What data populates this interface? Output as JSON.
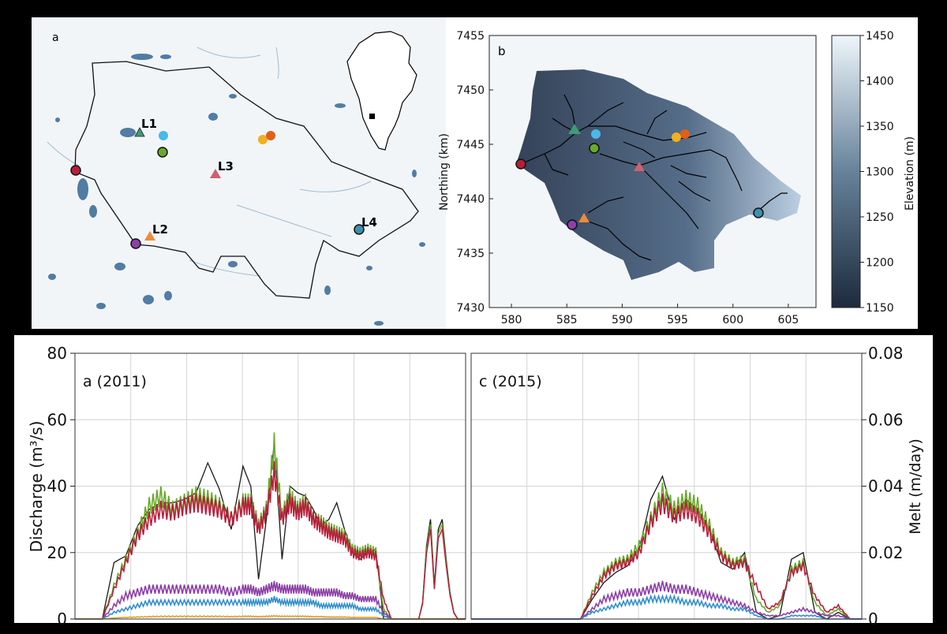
{
  "panel_a": {
    "label": "a",
    "lakes": [
      {
        "id": "L1",
        "label": "L1"
      },
      {
        "id": "L2",
        "label": "L2"
      },
      {
        "id": "L3",
        "label": "L3"
      },
      {
        "id": "L4",
        "label": "L4"
      }
    ]
  },
  "panel_b": {
    "label": "b",
    "xticks": [
      "580",
      "585",
      "590",
      "595",
      "600",
      "605"
    ],
    "yticks": [
      "7430",
      "7435",
      "7440",
      "7445",
      "7450",
      "7455"
    ],
    "ylabel": "Northing (km)",
    "colorbar": {
      "label": "Elevation (m)",
      "ticks": [
        "1150",
        "1200",
        "1250",
        "1300",
        "1350",
        "1400",
        "1450"
      ],
      "range": [
        1150,
        1450
      ],
      "colors": [
        "#1d2a3c",
        "#eef6fb"
      ]
    }
  },
  "chart_data": [
    {
      "type": "line",
      "panel": "a (2011)",
      "ylabel_left": "Discharge (m³/s)",
      "ylabel_right": "Melt (m/day)",
      "yticks_left": [
        "0",
        "20",
        "40",
        "60",
        "80"
      ],
      "yticks_right": [
        "0",
        "0.02",
        "0.04",
        "0.06",
        "0.08"
      ],
      "ylim": [
        0,
        80
      ],
      "ylim_right": [
        0,
        0.08
      ],
      "x_range": [
        0,
        100
      ],
      "grid": true,
      "series": [
        {
          "color": "#1a1a1a",
          "x": [
            0,
            4,
            7,
            10,
            13,
            16,
            19,
            22,
            25,
            28,
            31,
            34,
            37,
            40,
            43,
            45,
            47,
            49,
            51,
            53,
            55,
            57,
            59,
            61,
            63,
            65,
            67,
            69,
            71,
            73,
            75,
            77,
            79,
            81,
            83,
            85,
            87,
            89,
            91,
            93,
            95,
            97,
            99,
            100
          ],
          "y": [
            0,
            0,
            0,
            17,
            19,
            28,
            33,
            35,
            35,
            36,
            38,
            47,
            39,
            27,
            46,
            40,
            12,
            30,
            53,
            18,
            40,
            38,
            37,
            33,
            28,
            30,
            35,
            27,
            20,
            18,
            20,
            21,
            0,
            0,
            0,
            0,
            0,
            0,
            0,
            0,
            0,
            0,
            0,
            0
          ]
        },
        {
          "color": "#6aaa2a",
          "x": [
            0,
            4,
            7,
            10,
            13,
            16,
            19,
            22,
            25,
            28,
            31,
            34,
            37,
            40,
            43,
            45,
            47,
            49,
            51,
            53,
            55,
            57,
            59,
            61,
            63,
            65,
            67,
            69,
            71,
            73,
            75,
            77,
            79,
            81,
            83,
            85,
            87,
            89,
            91,
            93,
            95,
            97,
            99,
            100
          ],
          "y": [
            0,
            0,
            0,
            10,
            18,
            26,
            34,
            37,
            33,
            35,
            37,
            36,
            34,
            30,
            35,
            35,
            28,
            33,
            52,
            31,
            37,
            33,
            35,
            30,
            29,
            27,
            26,
            25,
            21,
            20,
            21,
            20,
            3,
            0,
            0,
            0,
            0,
            0,
            0,
            0,
            0,
            0,
            0,
            0
          ]
        },
        {
          "color": "#b81e3c",
          "x": [
            0,
            4,
            7,
            10,
            13,
            16,
            19,
            22,
            25,
            28,
            31,
            34,
            37,
            40,
            43,
            45,
            47,
            49,
            51,
            53,
            55,
            57,
            59,
            61,
            63,
            65,
            67,
            69,
            71,
            73,
            75,
            77,
            79,
            81,
            83,
            85,
            87,
            89,
            91,
            93,
            95,
            97,
            99,
            100
          ],
          "y": [
            0,
            0,
            0,
            9,
            17,
            25,
            30,
            33,
            32,
            34,
            35,
            34,
            33,
            30,
            34,
            34,
            27,
            32,
            44,
            30,
            35,
            32,
            34,
            30,
            28,
            26,
            25,
            24,
            20,
            19,
            20,
            19,
            6,
            0,
            0,
            0,
            0,
            0,
            0,
            0,
            0,
            0,
            0,
            0
          ]
        },
        {
          "color": "#8e3fa8",
          "x": [
            0,
            4,
            7,
            10,
            13,
            16,
            19,
            22,
            25,
            28,
            31,
            34,
            37,
            40,
            43,
            45,
            47,
            49,
            51,
            53,
            55,
            57,
            59,
            61,
            63,
            65,
            67,
            69,
            71,
            73,
            75,
            77,
            79,
            81,
            83,
            85,
            87,
            89,
            91,
            93,
            95,
            97,
            99,
            100
          ],
          "y": [
            0,
            0,
            0,
            4,
            7,
            8,
            9,
            9,
            9,
            9,
            9,
            9,
            9,
            8,
            9,
            9,
            8,
            9,
            10,
            9,
            9,
            9,
            9,
            8,
            8,
            8,
            8,
            7,
            7,
            6,
            6,
            6,
            2,
            0,
            0,
            0,
            0,
            0,
            0,
            0,
            0,
            0,
            0,
            0
          ]
        },
        {
          "color": "#2f8fd0",
          "x": [
            0,
            4,
            7,
            10,
            13,
            16,
            19,
            22,
            25,
            28,
            31,
            34,
            37,
            40,
            43,
            45,
            47,
            49,
            51,
            53,
            55,
            57,
            59,
            61,
            63,
            65,
            67,
            69,
            71,
            73,
            75,
            77,
            79,
            81,
            83,
            85,
            87,
            89,
            91,
            93,
            95,
            97,
            99,
            100
          ],
          "y": [
            0,
            0,
            0,
            2,
            3,
            4,
            5,
            5,
            5,
            5,
            5,
            5,
            5,
            5,
            5,
            5,
            5,
            5,
            6,
            5,
            5,
            5,
            5,
            5,
            4,
            4,
            4,
            4,
            4,
            3,
            3,
            3,
            1,
            0,
            0,
            0,
            0,
            0,
            0,
            0,
            0,
            0,
            0,
            0
          ]
        },
        {
          "color": "#e0a020",
          "x": [
            0,
            4,
            7,
            10,
            13,
            16,
            19,
            22,
            25,
            28,
            31,
            34,
            37,
            40,
            43,
            45,
            47,
            49,
            51,
            53,
            55,
            57,
            59,
            61,
            63,
            65,
            67,
            69,
            71,
            73,
            75,
            77,
            79,
            81,
            83,
            85,
            87,
            89,
            91,
            93,
            95,
            97,
            99,
            100
          ],
          "y": [
            0,
            0,
            0,
            0.3,
            0.5,
            0.6,
            0.7,
            0.8,
            0.8,
            0.8,
            0.8,
            0.8,
            0.8,
            0.7,
            0.8,
            0.8,
            0.7,
            0.8,
            0.9,
            0.8,
            0.8,
            0.8,
            0.8,
            0.7,
            0.7,
            0.6,
            0.6,
            0.6,
            0.5,
            0.5,
            0.5,
            0.5,
            0,
            0,
            0,
            0,
            0,
            0,
            0,
            0,
            0,
            0,
            0,
            0
          ]
        }
      ],
      "late_spike": {
        "x": [
          88,
          89,
          90,
          91,
          92,
          93,
          94,
          95,
          96,
          97,
          98,
          99,
          100
        ],
        "y": [
          0,
          5,
          22,
          30,
          10,
          27,
          30,
          18,
          8,
          2,
          0,
          0,
          0
        ]
      }
    },
    {
      "type": "line",
      "panel": "c (2015)",
      "ylim": [
        0,
        80
      ],
      "x_range": [
        0,
        100
      ],
      "grid": true,
      "series": [
        {
          "color": "#1a1a1a",
          "x": [
            0,
            20,
            28,
            31,
            34,
            37,
            40,
            43,
            46,
            49,
            52,
            55,
            58,
            61,
            64,
            67,
            70,
            73,
            76,
            79,
            82,
            85,
            88,
            91,
            94,
            97,
            100
          ],
          "y": [
            0,
            0,
            0,
            6,
            11,
            14,
            16,
            21,
            36,
            43,
            30,
            36,
            33,
            27,
            17,
            15,
            20,
            2,
            0,
            1,
            18,
            20,
            2,
            0,
            2,
            0,
            0
          ]
        },
        {
          "color": "#6aaa2a",
          "x": [
            0,
            20,
            28,
            31,
            34,
            37,
            40,
            43,
            46,
            49,
            52,
            55,
            58,
            61,
            64,
            67,
            70,
            73,
            76,
            79,
            82,
            85,
            88,
            91,
            94,
            97,
            100
          ],
          "y": [
            0,
            0,
            0,
            8,
            14,
            17,
            18,
            22,
            30,
            38,
            33,
            36,
            34,
            28,
            20,
            17,
            18,
            6,
            2,
            4,
            15,
            17,
            5,
            1,
            3,
            0,
            0
          ]
        },
        {
          "color": "#b81e3c",
          "x": [
            0,
            20,
            28,
            31,
            34,
            37,
            40,
            43,
            46,
            49,
            52,
            55,
            58,
            61,
            64,
            67,
            70,
            73,
            76,
            79,
            82,
            85,
            88,
            91,
            94,
            97,
            100
          ],
          "y": [
            0,
            0,
            0,
            7,
            13,
            16,
            17,
            20,
            29,
            35,
            31,
            33,
            31,
            26,
            19,
            16,
            17,
            10,
            3,
            5,
            14,
            16,
            7,
            2,
            4,
            0,
            0
          ]
        },
        {
          "color": "#8e3fa8",
          "x": [
            0,
            20,
            28,
            31,
            34,
            37,
            40,
            43,
            46,
            49,
            52,
            55,
            58,
            61,
            64,
            67,
            70,
            73,
            76,
            79,
            82,
            85,
            88,
            91,
            94,
            97,
            100
          ],
          "y": [
            0,
            0,
            0,
            3,
            6,
            7,
            8,
            8,
            9,
            10,
            9,
            9,
            8,
            7,
            6,
            5,
            4,
            2,
            1,
            1,
            2,
            3,
            2,
            1,
            1,
            0,
            0
          ]
        },
        {
          "color": "#2f8fd0",
          "x": [
            0,
            20,
            28,
            31,
            34,
            37,
            40,
            43,
            46,
            49,
            52,
            55,
            58,
            61,
            64,
            67,
            70,
            73,
            76,
            79,
            82,
            85,
            88,
            91,
            94,
            97,
            100
          ],
          "y": [
            0,
            0,
            0,
            2,
            3,
            4,
            5,
            5,
            6,
            6,
            6,
            5,
            5,
            4,
            4,
            3,
            3,
            1,
            0,
            0,
            1,
            1,
            1,
            0,
            0,
            0,
            0
          ]
        }
      ]
    }
  ]
}
